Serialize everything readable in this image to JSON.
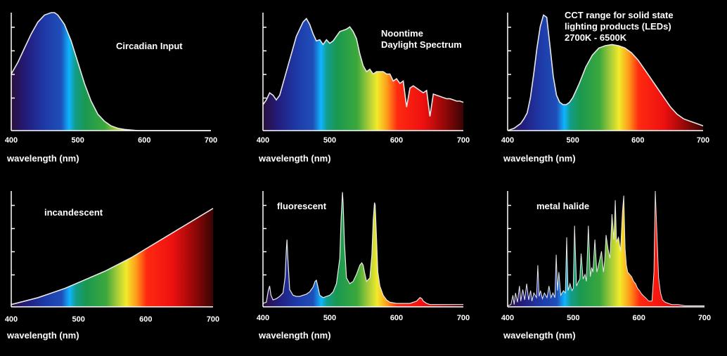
{
  "chart_data": [
    {
      "type": "area",
      "title_lines": [
        "Circadian Input"
      ],
      "xlabel": "wavelength (nm)",
      "xlim": [
        400,
        700
      ],
      "ylim": [
        0,
        1
      ],
      "x_ticks": [
        "400",
        "500",
        "600",
        "700"
      ],
      "grid": false,
      "x": [
        400,
        410,
        420,
        430,
        440,
        450,
        460,
        465,
        470,
        480,
        490,
        500,
        510,
        520,
        530,
        540,
        550,
        560,
        570,
        580,
        590,
        600,
        620,
        650,
        700
      ],
      "y": [
        0.48,
        0.58,
        0.7,
        0.82,
        0.92,
        0.98,
        1.0,
        1.0,
        0.98,
        0.9,
        0.76,
        0.58,
        0.4,
        0.25,
        0.14,
        0.08,
        0.04,
        0.02,
        0.01,
        0.005,
        0,
        0,
        0,
        0,
        0
      ]
    },
    {
      "type": "area",
      "title_lines": [
        "Noontime",
        "Daylight Spectrum"
      ],
      "xlabel": "wavelength (nm)",
      "xlim": [
        400,
        700
      ],
      "ylim": [
        0,
        1
      ],
      "x_ticks": [
        "400",
        "500",
        "600",
        "700"
      ],
      "grid": false,
      "x": [
        400,
        405,
        410,
        415,
        420,
        425,
        430,
        440,
        450,
        460,
        465,
        470,
        475,
        480,
        485,
        490,
        495,
        500,
        505,
        510,
        515,
        520,
        525,
        530,
        535,
        540,
        545,
        550,
        555,
        560,
        565,
        570,
        575,
        580,
        585,
        590,
        595,
        600,
        605,
        610,
        615,
        620,
        625,
        630,
        635,
        640,
        645,
        650,
        655,
        660,
        665,
        670,
        675,
        680,
        685,
        690,
        695,
        700
      ],
      "y": [
        0.22,
        0.26,
        0.32,
        0.3,
        0.26,
        0.3,
        0.4,
        0.6,
        0.8,
        0.92,
        0.95,
        0.9,
        0.82,
        0.76,
        0.77,
        0.73,
        0.77,
        0.74,
        0.76,
        0.8,
        0.84,
        0.85,
        0.86,
        0.88,
        0.84,
        0.78,
        0.65,
        0.55,
        0.5,
        0.52,
        0.48,
        0.5,
        0.5,
        0.5,
        0.48,
        0.48,
        0.42,
        0.44,
        0.4,
        0.42,
        0.2,
        0.36,
        0.38,
        0.36,
        0.34,
        0.32,
        0.34,
        0.12,
        0.31,
        0.3,
        0.29,
        0.28,
        0.27,
        0.27,
        0.26,
        0.25,
        0.25,
        0.24
      ]
    },
    {
      "type": "area",
      "title_lines": [
        "CCT range for solid state",
        "lighting products (LEDs)",
        "2700K - 6500K"
      ],
      "xlabel": "wavelength (nm)",
      "xlim": [
        400,
        700
      ],
      "ylim": [
        0,
        1
      ],
      "x_ticks": [
        "400",
        "500",
        "600",
        "700"
      ],
      "grid": false,
      "x": [
        400,
        410,
        420,
        425,
        430,
        435,
        440,
        445,
        450,
        455,
        460,
        465,
        470,
        475,
        480,
        485,
        490,
        495,
        500,
        510,
        520,
        530,
        540,
        550,
        560,
        570,
        580,
        590,
        600,
        610,
        620,
        630,
        640,
        650,
        660,
        670,
        680,
        690,
        700
      ],
      "y": [
        0,
        0.02,
        0.06,
        0.1,
        0.15,
        0.28,
        0.48,
        0.7,
        0.88,
        0.98,
        0.96,
        0.72,
        0.46,
        0.3,
        0.24,
        0.22,
        0.22,
        0.24,
        0.28,
        0.4,
        0.54,
        0.64,
        0.7,
        0.72,
        0.73,
        0.72,
        0.7,
        0.66,
        0.6,
        0.52,
        0.44,
        0.36,
        0.28,
        0.2,
        0.14,
        0.1,
        0.08,
        0.06,
        0.04
      ]
    },
    {
      "type": "area",
      "title_lines": [
        "incandescent"
      ],
      "xlabel": "wavelength (nm)",
      "xlim": [
        400,
        700
      ],
      "ylim": [
        0,
        1
      ],
      "x_ticks": [
        "400",
        "500",
        "600",
        "700"
      ],
      "grid": false,
      "x": [
        400,
        420,
        440,
        460,
        480,
        500,
        520,
        540,
        560,
        580,
        600,
        620,
        640,
        660,
        680,
        700
      ],
      "y": [
        0.02,
        0.05,
        0.08,
        0.12,
        0.16,
        0.21,
        0.26,
        0.31,
        0.37,
        0.43,
        0.5,
        0.57,
        0.64,
        0.71,
        0.78,
        0.85
      ]
    },
    {
      "type": "area",
      "title_lines": [
        "fluorescent"
      ],
      "xlabel": "wavelength (nm)",
      "xlim": [
        400,
        700
      ],
      "ylim": [
        0,
        1
      ],
      "x_ticks": [
        "400",
        "500",
        "600",
        "700"
      ],
      "grid": false,
      "x": [
        400,
        405,
        408,
        410,
        412,
        415,
        420,
        425,
        430,
        433,
        435,
        436,
        437,
        440,
        445,
        450,
        455,
        460,
        465,
        470,
        475,
        478,
        480,
        482,
        485,
        490,
        500,
        505,
        510,
        515,
        517,
        519,
        520,
        522,
        525,
        530,
        535,
        540,
        545,
        548,
        550,
        552,
        555,
        560,
        563,
        565,
        567,
        568,
        570,
        572,
        575,
        580,
        585,
        590,
        600,
        610,
        620,
        630,
        635,
        638,
        640,
        645,
        650,
        660,
        700
      ],
      "y": [
        0.03,
        0.04,
        0.14,
        0.18,
        0.1,
        0.06,
        0.07,
        0.09,
        0.12,
        0.25,
        0.5,
        0.58,
        0.45,
        0.15,
        0.1,
        0.09,
        0.09,
        0.1,
        0.11,
        0.13,
        0.17,
        0.22,
        0.23,
        0.18,
        0.1,
        0.08,
        0.1,
        0.13,
        0.2,
        0.42,
        0.75,
        0.99,
        0.9,
        0.55,
        0.25,
        0.2,
        0.22,
        0.28,
        0.36,
        0.38,
        0.36,
        0.3,
        0.22,
        0.25,
        0.45,
        0.75,
        0.9,
        0.88,
        0.6,
        0.3,
        0.18,
        0.1,
        0.06,
        0.04,
        0.03,
        0.03,
        0.03,
        0.05,
        0.08,
        0.07,
        0.05,
        0.03,
        0.02,
        0.02,
        0.02
      ]
    },
    {
      "type": "area",
      "title_lines": [
        "metal  halide"
      ],
      "xlabel": "wavelength (nm)",
      "xlim": [
        400,
        700
      ],
      "ylim": [
        0,
        1
      ],
      "x_ticks": [
        "400",
        "500",
        "600",
        "700"
      ],
      "grid": false,
      "x": [
        400,
        405,
        408,
        410,
        412,
        415,
        418,
        420,
        423,
        426,
        429,
        432,
        435,
        437,
        440,
        444,
        446,
        448,
        450,
        453,
        456,
        460,
        463,
        466,
        469,
        472,
        474,
        476,
        478,
        481,
        485,
        488,
        490,
        492,
        495,
        498,
        500,
        502,
        505,
        508,
        510,
        512,
        515,
        518,
        520,
        523,
        526,
        528,
        530,
        533,
        536,
        540,
        543,
        546,
        548,
        550,
        553,
        556,
        559,
        562,
        564,
        566,
        569,
        572,
        575,
        577,
        579,
        581,
        583,
        586,
        589,
        592,
        595,
        598,
        601,
        603,
        606,
        610,
        615,
        620,
        623,
        625,
        627,
        630,
        633,
        636,
        640,
        645,
        650,
        660,
        670,
        680,
        690,
        700
      ],
      "y": [
        0.01,
        0.02,
        0.1,
        0.02,
        0.12,
        0.04,
        0.18,
        0.05,
        0.15,
        0.06,
        0.2,
        0.06,
        0.14,
        0.05,
        0.12,
        0.08,
        0.36,
        0.09,
        0.14,
        0.07,
        0.12,
        0.08,
        0.18,
        0.08,
        0.12,
        0.08,
        0.45,
        0.14,
        0.3,
        0.1,
        0.14,
        0.12,
        0.6,
        0.14,
        0.2,
        0.14,
        0.16,
        0.7,
        0.18,
        0.22,
        0.24,
        0.46,
        0.24,
        0.28,
        0.22,
        0.7,
        0.26,
        0.34,
        0.3,
        0.58,
        0.3,
        0.4,
        0.48,
        0.3,
        0.4,
        0.62,
        0.5,
        0.42,
        0.8,
        0.58,
        0.92,
        0.56,
        0.6,
        0.48,
        0.82,
        0.96,
        0.5,
        0.36,
        0.3,
        0.28,
        0.26,
        0.22,
        0.2,
        0.16,
        0.14,
        0.12,
        0.1,
        0.08,
        0.05,
        0.05,
        0.3,
        1.0,
        0.7,
        0.25,
        0.12,
        0.06,
        0.04,
        0.03,
        0.02,
        0.02,
        0.01,
        0.01,
        0.01,
        0.01
      ]
    }
  ]
}
